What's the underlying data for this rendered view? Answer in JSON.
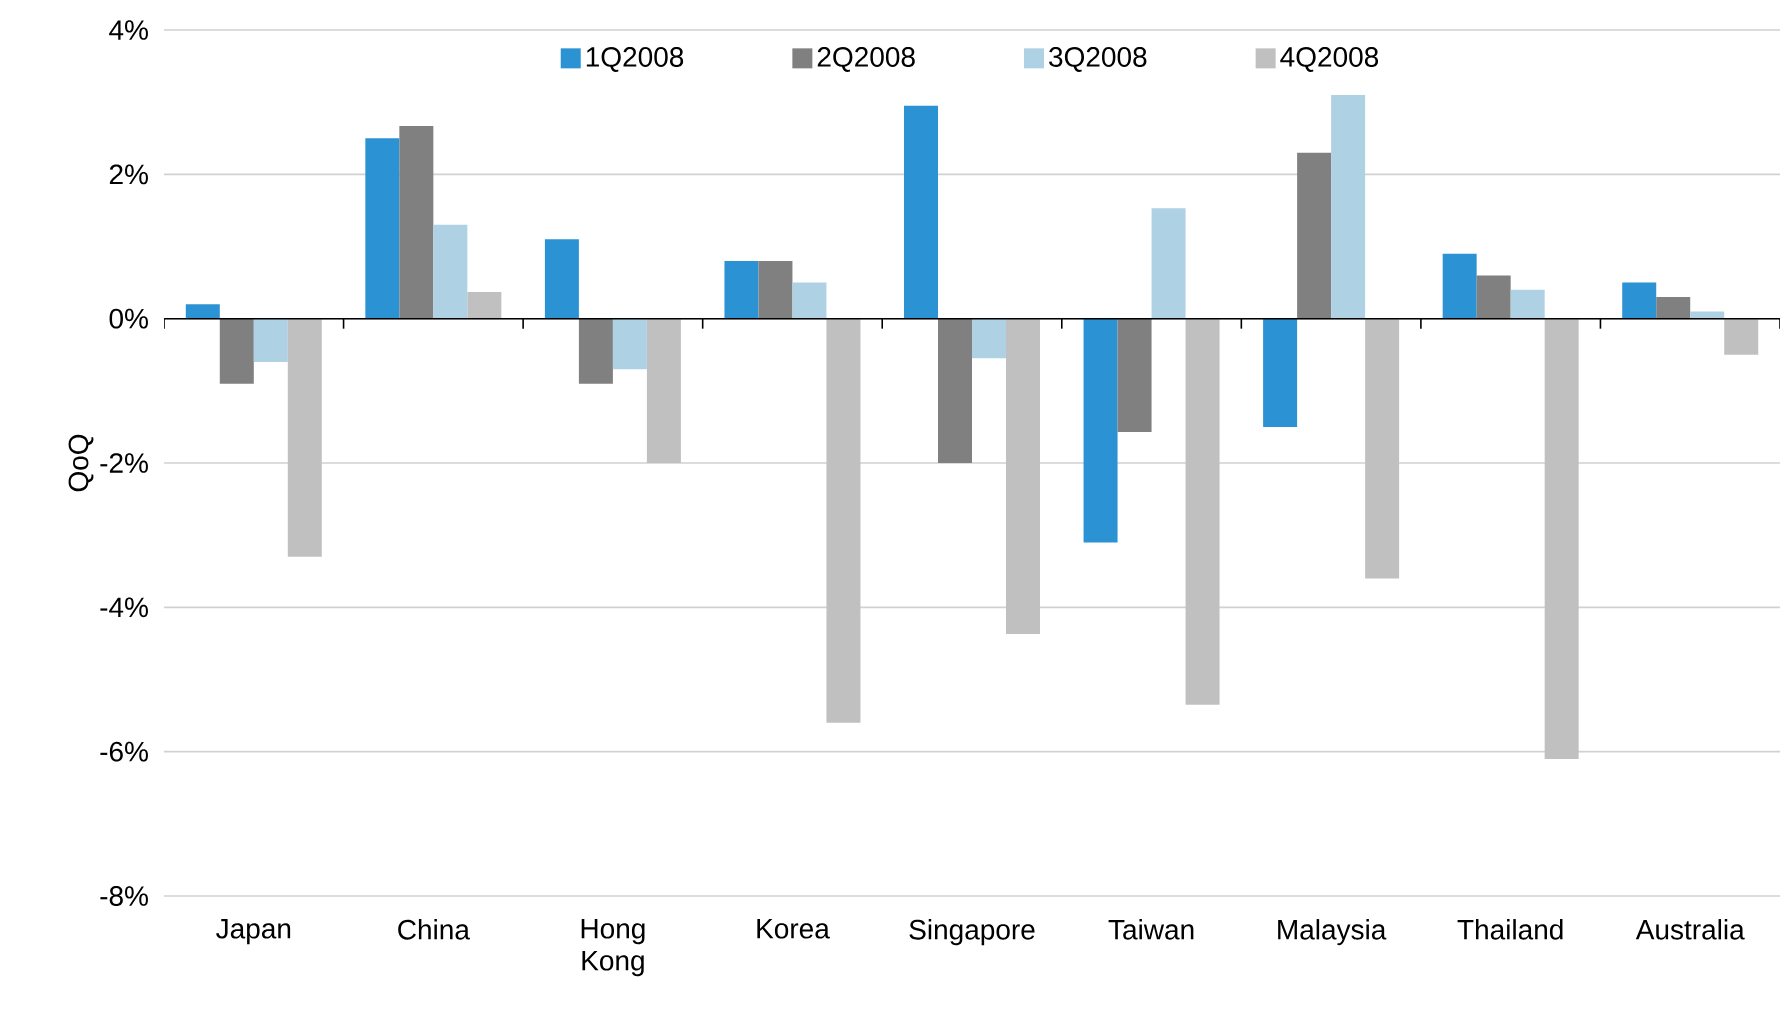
{
  "chart_data": {
    "type": "bar",
    "ylabel": "QoQ",
    "categories": [
      "Japan",
      "China",
      "Hong Kong",
      "Korea",
      "Singapore",
      "Taiwan",
      "Malaysia",
      "Thailand",
      "Australia"
    ],
    "series": [
      {
        "name": "1Q2008",
        "color": "#2b92d3",
        "values": [
          0.2,
          2.5,
          1.1,
          0.8,
          2.95,
          -3.1,
          -1.5,
          0.9,
          0.5
        ]
      },
      {
        "name": "2Q2008",
        "color": "#808080",
        "values": [
          -0.9,
          2.67,
          -0.9,
          0.8,
          -2.0,
          -1.57,
          2.3,
          0.6,
          0.3
        ]
      },
      {
        "name": "3Q2008",
        "color": "#afd1e4",
        "values": [
          -0.6,
          1.3,
          -0.7,
          0.5,
          -0.55,
          1.53,
          3.1,
          0.4,
          0.1
        ]
      },
      {
        "name": "4Q2008",
        "color": "#c0c0c0",
        "values": [
          -3.3,
          0.37,
          -2.0,
          -5.6,
          -4.37,
          -5.35,
          -3.6,
          -6.1,
          -0.5
        ]
      }
    ],
    "ylim": [
      -8,
      4
    ],
    "yticks": [
      {
        "value": -8,
        "label": "-8%"
      },
      {
        "value": -6,
        "label": "-6%"
      },
      {
        "value": -4,
        "label": "-4%"
      },
      {
        "value": -2,
        "label": "-2%"
      },
      {
        "value": 0,
        "label": "0%"
      },
      {
        "value": 2,
        "label": "2%"
      },
      {
        "value": 4,
        "label": "4%"
      }
    ],
    "grid": "y",
    "legend": "top"
  }
}
